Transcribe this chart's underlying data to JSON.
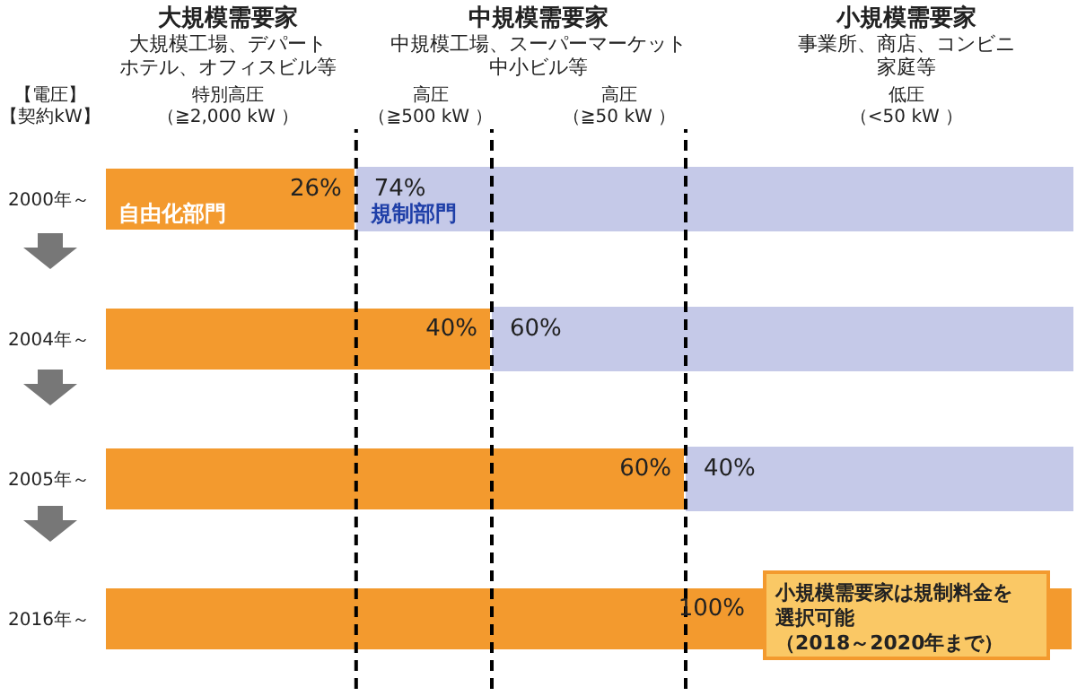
{
  "chart_data": {
    "type": "bar",
    "orientation": "horizontal",
    "stacked": true,
    "categories": [
      "2000年～",
      "2004年～",
      "2005年～",
      "2016年～"
    ],
    "series": [
      {
        "name": "自由化部門",
        "color": "#f39a2e",
        "values": [
          26,
          40,
          60,
          100
        ],
        "value_labels": [
          "26%",
          "40%",
          "60%",
          "100%"
        ]
      },
      {
        "name": "規制部門",
        "color": "#c5c9e8",
        "values": [
          74,
          60,
          40,
          null
        ],
        "value_labels": [
          "74%",
          "60%",
          "40%",
          null
        ]
      }
    ],
    "xlim": [
      0,
      100
    ],
    "tick_labels": "y",
    "ref_lines": [
      {
        "axis": "x",
        "value": 26,
        "color": "#000000",
        "line_style": "dashed"
      },
      {
        "axis": "x",
        "value": 40,
        "color": "#000000",
        "line_style": "dashed"
      },
      {
        "axis": "x",
        "value": 60,
        "color": "#000000",
        "line_style": "dashed"
      }
    ],
    "annotations": [
      "大規模需要家",
      "大規模工場、デパート",
      "ホテル、オフィスビル等",
      "中規模需要家",
      "中規模工場、スーパーマーケット",
      "中小ビル等",
      "小規模需要家",
      "事業所、商店、コンビニ",
      "家庭等",
      "【電圧】",
      "【契約kW】",
      "特別高圧",
      "（≧2,000 kW ）",
      "高圧",
      "（≧500 kW ）",
      "高圧",
      "（≧50 kW ）",
      "低圧",
      "（<50 kW ）",
      "小規模需要家は規制料金を",
      "選択可能",
      "（2018～2020年まで）"
    ]
  }
}
